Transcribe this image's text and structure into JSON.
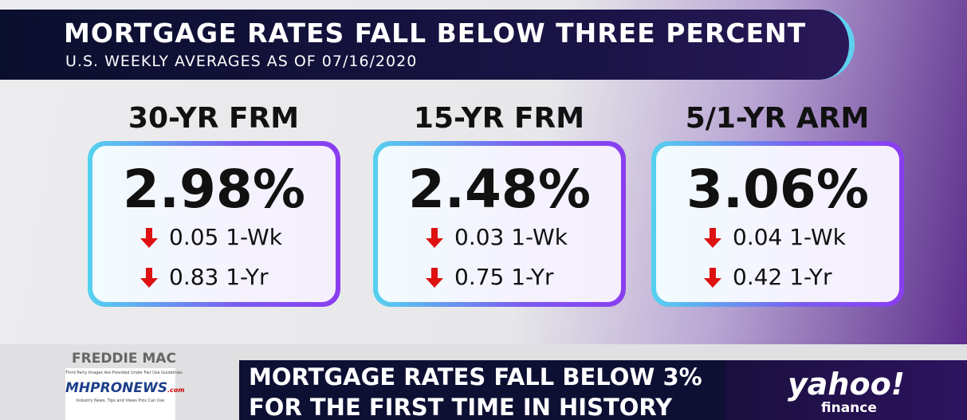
{
  "header": {
    "title": "MORTGAGE RATES FALL BELOW THREE PERCENT",
    "subtitle": "U.S. WEEKLY AVERAGES AS OF 07/16/2020"
  },
  "cards": [
    {
      "label": "30-YR FRM",
      "rate": "2.98%",
      "changes": [
        "0.05 1-Wk",
        "0.83 1-Yr"
      ]
    },
    {
      "label": "15-YR FRM",
      "rate": "2.48%",
      "changes": [
        "0.03 1-Wk",
        "0.75 1-Yr"
      ]
    },
    {
      "label": "5/1-YR ARM",
      "rate": "3.06%",
      "changes": [
        "0.04 1-Wk",
        "0.42 1-Yr"
      ]
    }
  ],
  "source": "FREDDIE MAC",
  "watermark": {
    "note": "Third Party Images Are Provided Under Fair Use Guidelines.",
    "logo": "MHPRONEWS",
    "logo_suffix": ".com",
    "tagline": "Industry News, Tips and Views Pros Can Use"
  },
  "ticker": {
    "line1": "MORTGAGE RATES FALL BELOW 3%",
    "line2": "FOR THE FIRST TIME IN HISTORY"
  },
  "brand": {
    "name": "yahoo!",
    "sub": "finance"
  }
}
